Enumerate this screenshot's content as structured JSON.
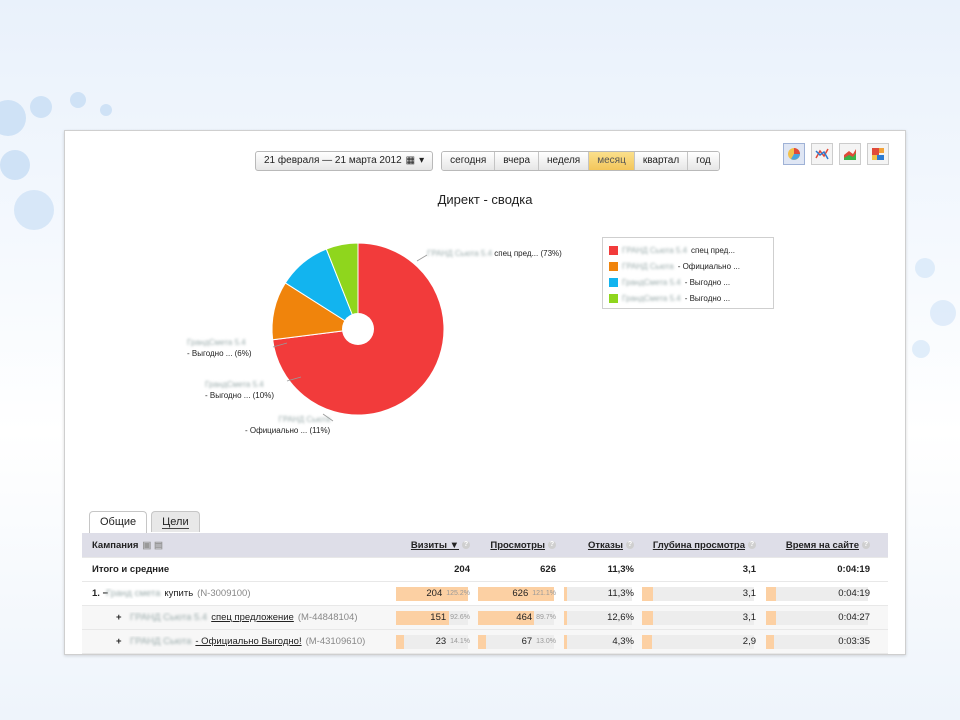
{
  "toolbar": {
    "date_range": "21 февраля — 21 марта 2012",
    "periods": [
      "сегодня",
      "вчера",
      "неделя",
      "месяц",
      "квартал",
      "год"
    ],
    "active_period": "месяц"
  },
  "chart_types": [
    "pie-chart-icon",
    "line-chart-icon",
    "area-chart-icon",
    "treemap-icon"
  ],
  "chart_data": {
    "type": "pie",
    "title": "Директ - сводка",
    "slices": [
      {
        "label_blur": "ГРАНД Сьюта 5.4",
        "label": "спец пред... (73%)",
        "value": 73,
        "color": "#f23b3b"
      },
      {
        "label_blur": "ГРАНД Сьюта",
        "label": "- Официально ... (11%)",
        "value": 11,
        "color": "#f0840c"
      },
      {
        "label_blur": "ГрандСмета 5.4",
        "label": "- Выгодно ... (10%)",
        "value": 10,
        "color": "#12b4ef"
      },
      {
        "label_blur": "ГрандСмета 5.4",
        "label": "- Выгодно ... (6%)",
        "value": 6,
        "color": "#8fd61d"
      }
    ],
    "legend": [
      {
        "blur": "ГРАНД Сьюта 5.4",
        "text": "спец пред..."
      },
      {
        "blur": "ГРАНД Сьюта",
        "text": "- Официально ..."
      },
      {
        "blur": "ГрандСмета 5.4",
        "text": "- Выгодно ..."
      },
      {
        "blur": "ГрандСмета 5.4",
        "text": "- Выгодно ..."
      }
    ],
    "legend_position": "top-right"
  },
  "tabs": [
    "Общие",
    "Цели"
  ],
  "table": {
    "headers": {
      "campaign": "Кампания",
      "visits": "Визиты ▼",
      "views": "Просмотры",
      "bounces": "Отказы",
      "depth": "Глубина просмотра",
      "time": "Время на сайте"
    },
    "totals": {
      "label": "Итого и средние",
      "visits": "204",
      "views": "626",
      "bounces": "11,3%",
      "depth": "3,1",
      "time": "0:04:19"
    },
    "rows": [
      {
        "prefix": "1. −",
        "blur": "Гранд смета",
        "name": "купить",
        "id": "(N-3009100)",
        "visits": "204",
        "visits_pct": "125.2%",
        "visits_fill": 1.0,
        "views": "626",
        "views_pct": "121.1%",
        "views_fill": 1.0,
        "bounces": "11,3%",
        "bounces_fill": 0.05,
        "depth": "3,1",
        "depth_fill": 0.1,
        "time": "0:04:19",
        "time_fill": 0.1
      },
      {
        "prefix": "+",
        "blur": "ГРАНД Сьюта 5.4",
        "name": "спец предложение",
        "id": "(M-44848104)",
        "visits": "151",
        "visits_pct": "92.6%",
        "visits_fill": 0.74,
        "views": "464",
        "views_pct": "89.7%",
        "views_fill": 0.74,
        "bounces": "12,6%",
        "bounces_fill": 0.05,
        "depth": "3,1",
        "depth_fill": 0.1,
        "time": "0:04:27",
        "time_fill": 0.1
      },
      {
        "prefix": "+",
        "blur": "ГРАНД Сьюта",
        "name": "- Официально Выгодно!",
        "id": "(M-43109610)",
        "visits": "23",
        "visits_pct": "14.1%",
        "visits_fill": 0.11,
        "views": "67",
        "views_pct": "13.0%",
        "views_fill": 0.11,
        "bounces": "4,3%",
        "bounces_fill": 0.05,
        "depth": "2,9",
        "depth_fill": 0.09,
        "time": "0:03:35",
        "time_fill": 0.08
      }
    ]
  }
}
